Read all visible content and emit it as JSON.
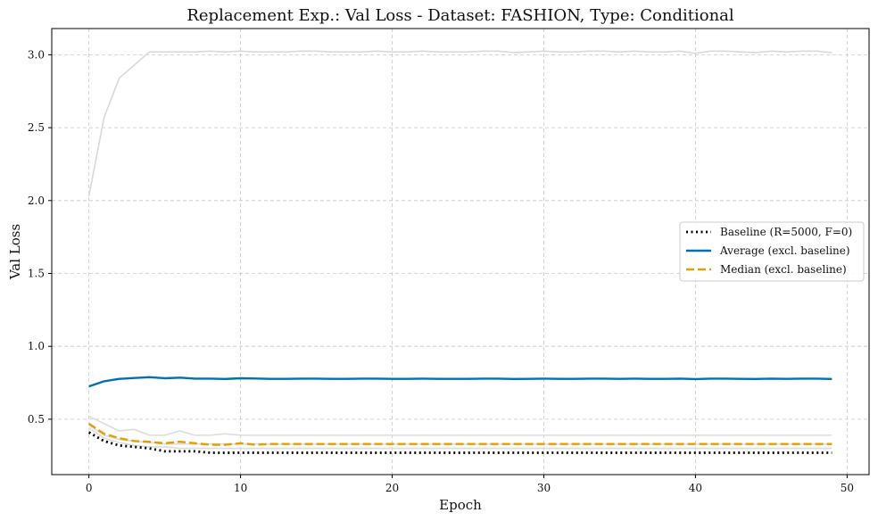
{
  "chart_data": {
    "type": "line",
    "title": "Replacement Exp.: Val Loss - Dataset: FASHION, Type: Conditional",
    "xlabel": "Epoch",
    "ylabel": "Val Loss",
    "xlim": [
      -2.45,
      51.45
    ],
    "ylim": [
      0.12,
      3.18
    ],
    "xticks": [
      0,
      10,
      20,
      30,
      40,
      50
    ],
    "yticks": [
      0.5,
      1.0,
      1.5,
      2.0,
      2.5,
      3.0
    ],
    "xtick_labels": [
      "0",
      "10",
      "20",
      "30",
      "40",
      "50"
    ],
    "ytick_labels": [
      "0.5",
      "1.0",
      "1.5",
      "2.0",
      "2.5",
      "3.0"
    ],
    "grid": true,
    "legend_position": "center-right",
    "series": [
      {
        "name": "",
        "role": "run",
        "color": "#d9d9d9",
        "style": "solid",
        "values": [
          2.03,
          2.57,
          2.84,
          2.93,
          3.02,
          3.02,
          3.02,
          3.02,
          3.025,
          3.02,
          3.025,
          3.02,
          3.02,
          3.02,
          3.025,
          3.025,
          3.02,
          3.02,
          3.02,
          3.025,
          3.02,
          3.02,
          3.025,
          3.02,
          3.02,
          3.02,
          3.025,
          3.025,
          3.015,
          3.02,
          3.025,
          3.02,
          3.02,
          3.025,
          3.025,
          3.02,
          3.025,
          3.02,
          3.02,
          3.025,
          3.01,
          3.025,
          3.025,
          3.02,
          3.015,
          3.025,
          3.02,
          3.025,
          3.025,
          3.015
        ]
      },
      {
        "name": "",
        "role": "run",
        "color": "#dcdcdc",
        "style": "solid",
        "values": [
          0.52,
          0.47,
          0.42,
          0.43,
          0.39,
          0.39,
          0.42,
          0.39,
          0.39,
          0.4,
          0.39,
          0.39,
          0.39,
          0.39,
          0.39,
          0.39,
          0.39,
          0.39,
          0.39,
          0.39,
          0.39,
          0.39,
          0.39,
          0.39,
          0.39,
          0.39,
          0.39,
          0.39,
          0.39,
          0.39,
          0.39,
          0.39,
          0.39,
          0.39,
          0.39,
          0.39,
          0.39,
          0.39,
          0.39,
          0.39,
          0.39,
          0.39,
          0.39,
          0.39,
          0.39,
          0.39,
          0.39,
          0.39,
          0.39,
          0.39
        ]
      },
      {
        "name": "",
        "role": "run",
        "color": "#dcdcdc",
        "style": "solid",
        "values": [
          0.46,
          0.39,
          0.36,
          0.35,
          0.34,
          0.33,
          0.33,
          0.33,
          0.33,
          0.33,
          0.33,
          0.33,
          0.33,
          0.33,
          0.33,
          0.33,
          0.33,
          0.33,
          0.33,
          0.33,
          0.33,
          0.33,
          0.33,
          0.33,
          0.33,
          0.33,
          0.33,
          0.33,
          0.33,
          0.33,
          0.33,
          0.33,
          0.33,
          0.33,
          0.33,
          0.33,
          0.33,
          0.33,
          0.33,
          0.33,
          0.33,
          0.33,
          0.33,
          0.33,
          0.33,
          0.33,
          0.33,
          0.33,
          0.33,
          0.33
        ]
      },
      {
        "name": "",
        "role": "run",
        "color": "#dcdcdc",
        "style": "solid",
        "values": [
          0.44,
          0.37,
          0.34,
          0.32,
          0.31,
          0.31,
          0.3,
          0.3,
          0.3,
          0.3,
          0.3,
          0.3,
          0.3,
          0.3,
          0.3,
          0.3,
          0.3,
          0.3,
          0.3,
          0.3,
          0.3,
          0.3,
          0.3,
          0.3,
          0.3,
          0.3,
          0.3,
          0.3,
          0.3,
          0.3,
          0.3,
          0.3,
          0.3,
          0.3,
          0.3,
          0.3,
          0.3,
          0.3,
          0.3,
          0.3,
          0.3,
          0.3,
          0.3,
          0.3,
          0.3,
          0.3,
          0.3,
          0.3,
          0.3,
          0.3
        ]
      },
      {
        "name": "Baseline (R=5000, F=0)",
        "role": "legend",
        "color": "#000000",
        "style": "dotted",
        "values": [
          0.41,
          0.35,
          0.32,
          0.31,
          0.3,
          0.28,
          0.28,
          0.28,
          0.27,
          0.27,
          0.27,
          0.27,
          0.27,
          0.27,
          0.27,
          0.27,
          0.27,
          0.27,
          0.27,
          0.27,
          0.27,
          0.27,
          0.27,
          0.27,
          0.27,
          0.27,
          0.27,
          0.27,
          0.27,
          0.27,
          0.27,
          0.27,
          0.27,
          0.27,
          0.27,
          0.27,
          0.27,
          0.27,
          0.27,
          0.27,
          0.27,
          0.27,
          0.27,
          0.27,
          0.27,
          0.27,
          0.27,
          0.27,
          0.27,
          0.27
        ]
      },
      {
        "name": "Average (excl. baseline)",
        "role": "legend",
        "color": "#0072b2",
        "style": "solid",
        "values": [
          0.725,
          0.76,
          0.777,
          0.783,
          0.788,
          0.781,
          0.785,
          0.778,
          0.778,
          0.776,
          0.781,
          0.779,
          0.777,
          0.777,
          0.778,
          0.778,
          0.777,
          0.777,
          0.778,
          0.778,
          0.777,
          0.777,
          0.778,
          0.777,
          0.777,
          0.777,
          0.778,
          0.778,
          0.776,
          0.777,
          0.778,
          0.777,
          0.777,
          0.778,
          0.778,
          0.777,
          0.778,
          0.777,
          0.777,
          0.778,
          0.775,
          0.778,
          0.778,
          0.777,
          0.776,
          0.778,
          0.777,
          0.778,
          0.778,
          0.776
        ]
      },
      {
        "name": "Median (excl. baseline)",
        "role": "legend",
        "color": "#e69f00",
        "style": "dashed",
        "values": [
          0.47,
          0.4,
          0.37,
          0.35,
          0.345,
          0.335,
          0.345,
          0.335,
          0.325,
          0.325,
          0.335,
          0.325,
          0.33,
          0.33,
          0.33,
          0.33,
          0.33,
          0.33,
          0.33,
          0.33,
          0.33,
          0.33,
          0.33,
          0.33,
          0.33,
          0.33,
          0.33,
          0.33,
          0.33,
          0.33,
          0.33,
          0.33,
          0.33,
          0.33,
          0.33,
          0.33,
          0.33,
          0.33,
          0.33,
          0.33,
          0.33,
          0.33,
          0.33,
          0.33,
          0.33,
          0.33,
          0.33,
          0.33,
          0.33,
          0.33
        ]
      }
    ]
  }
}
